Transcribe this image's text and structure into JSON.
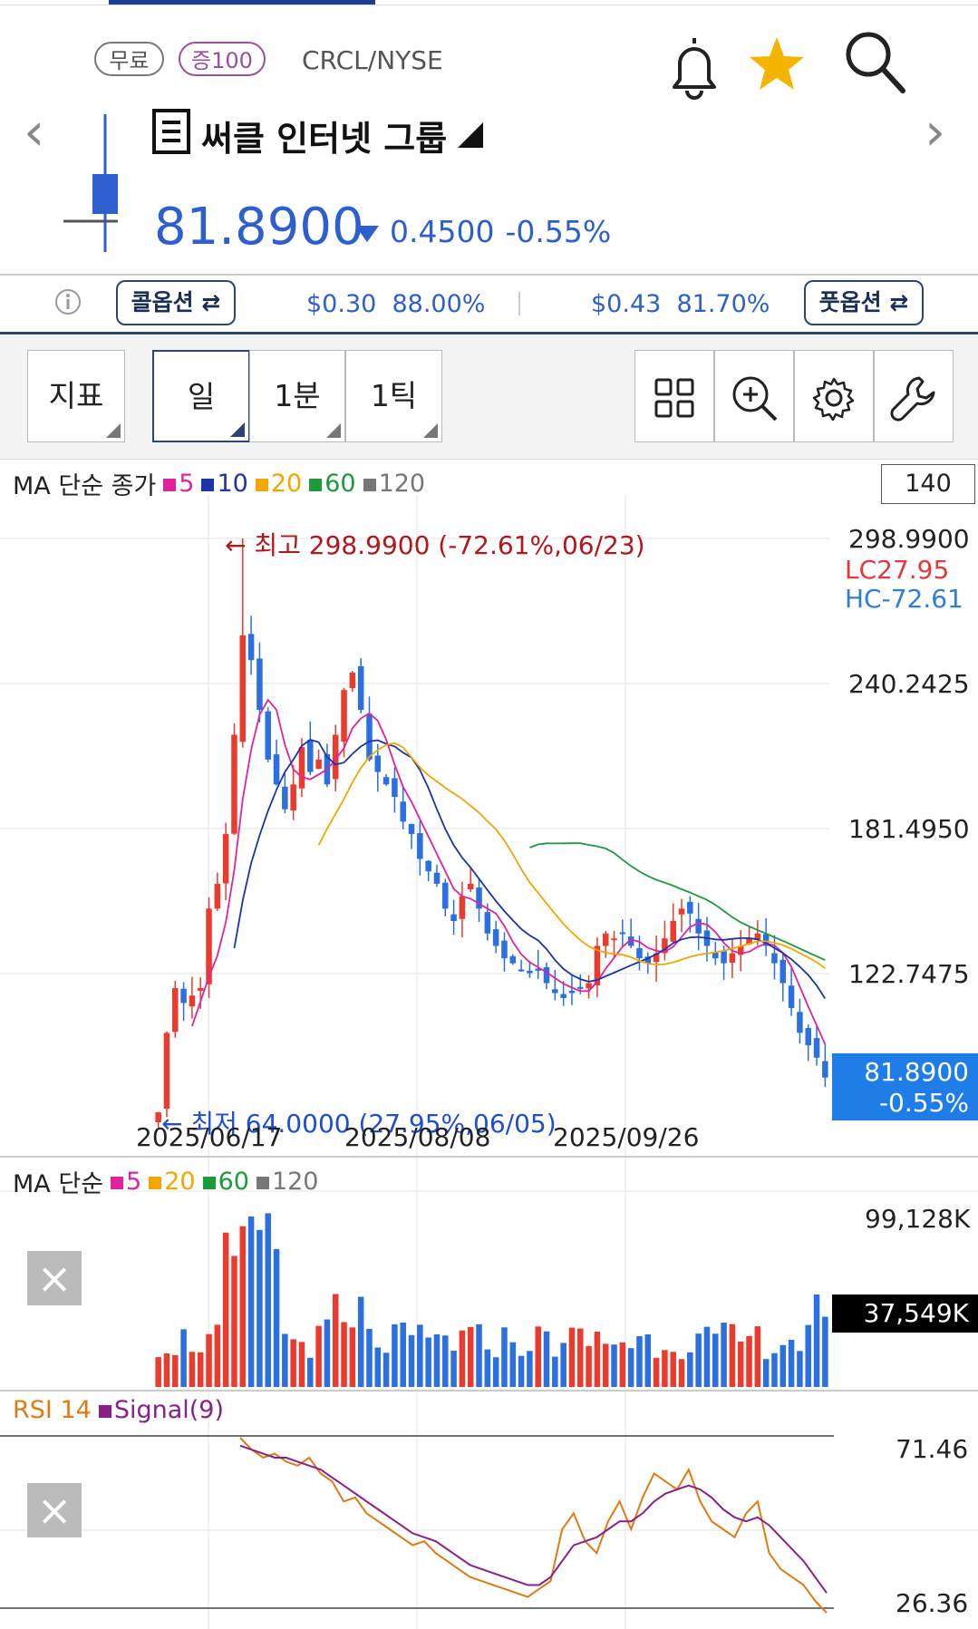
{
  "header": {
    "free_badge": "무료",
    "margin_badge": "증100",
    "ticker": "CRCL/NYSE",
    "title": "써클 인터넷 그룹",
    "price": "81.8900",
    "change": "0.4500",
    "change_pct": "-0.55%",
    "accent_color": "#2e5fce",
    "star_color": "#f5b400"
  },
  "options_bar": {
    "call_label": "콜옵션",
    "call_price": "$0.30",
    "call_pct": "88.00%",
    "put_price": "$0.43",
    "put_pct": "81.70%",
    "put_label": "풋옵션"
  },
  "toolbar": {
    "indicator": "지표",
    "daily": "일",
    "one_min": "1분",
    "one_tick": "1틱"
  },
  "price_panel": {
    "legend_title": "MA 단순 종가",
    "ma_periods": [
      "5",
      "10",
      "20",
      "60",
      "120"
    ],
    "ma_colors": [
      "#e0249d",
      "#1a35a6",
      "#f0a800",
      "#1c9b3a",
      "#777777"
    ],
    "period_box": "140",
    "high_note": "← 최고 298.9900 (-72.61%,06/23)",
    "low_note": "← 최저 64.0000 (27.95%,06/05)",
    "lc": "LC27.95",
    "hc": "HC-72.61",
    "y_ticks": [
      "298.9900",
      "240.2425",
      "181.4950",
      "122.7475"
    ],
    "last_price": "81.8900",
    "last_pct": "-0.55%",
    "x_ticks": [
      "2025/06/17",
      "2025/08/08",
      "2025/09/26"
    ]
  },
  "volume_panel": {
    "legend_title": "MA 단순",
    "ma_periods": [
      "5",
      "20",
      "60",
      "120"
    ],
    "ma_colors": [
      "#e0249d",
      "#f0a800",
      "#1c9b3a",
      "#777777"
    ],
    "y_top": "99,128K",
    "last_volume": "37,549K"
  },
  "rsi_panel": {
    "rsi_label": "RSI 14",
    "signal_label": "Signal(9)",
    "y_top": "71.46",
    "y_bottom": "26.36"
  },
  "chart_data": {
    "type": "candlestick",
    "x_ticks": [
      "2025/06/17",
      "2025/08/08",
      "2025/09/26"
    ],
    "ylim": [
      64.0,
      298.99
    ],
    "close": [
      68,
      100,
      118,
      112,
      115,
      118,
      150,
      160,
      180,
      220,
      260,
      250,
      230,
      210,
      200,
      190,
      200,
      215,
      205,
      210,
      200,
      220,
      238,
      245,
      230,
      210,
      205,
      200,
      195,
      185,
      180,
      170,
      165,
      160,
      150,
      145,
      155,
      160,
      150,
      140,
      135,
      130,
      128,
      125,
      124,
      125,
      120,
      116,
      114,
      116,
      118,
      120,
      135,
      140,
      138,
      140,
      135,
      130,
      128,
      132,
      138,
      145,
      150,
      148,
      140,
      135,
      130,
      128,
      132,
      135,
      138,
      140,
      135,
      128,
      120,
      110,
      100,
      95,
      90,
      82
    ],
    "volume_top_k": 99128,
    "volume_last_k": 37549,
    "rsi_range": [
      26.36,
      71.46
    ],
    "rsi": [
      71,
      68,
      66,
      67,
      65,
      64,
      66,
      62,
      60,
      55,
      56,
      52,
      50,
      48,
      46,
      44,
      45,
      42,
      40,
      38,
      36,
      35,
      34,
      33,
      32,
      31,
      33,
      35,
      48,
      52,
      45,
      42,
      50,
      55,
      48,
      56,
      62,
      60,
      58,
      63,
      55,
      50,
      48,
      46,
      52,
      55,
      42,
      38,
      36,
      34,
      30,
      27
    ],
    "rsi_signal": [
      69,
      68,
      67,
      66,
      66,
      65,
      64,
      63,
      61,
      59,
      57,
      55,
      53,
      51,
      49,
      47,
      46,
      45,
      43,
      41,
      39,
      38,
      37,
      36,
      35,
      34,
      34,
      36,
      40,
      44,
      45,
      46,
      48,
      50,
      50,
      52,
      55,
      57,
      58,
      59,
      58,
      56,
      53,
      51,
      50,
      51,
      49,
      46,
      43,
      40,
      36,
      32
    ]
  }
}
